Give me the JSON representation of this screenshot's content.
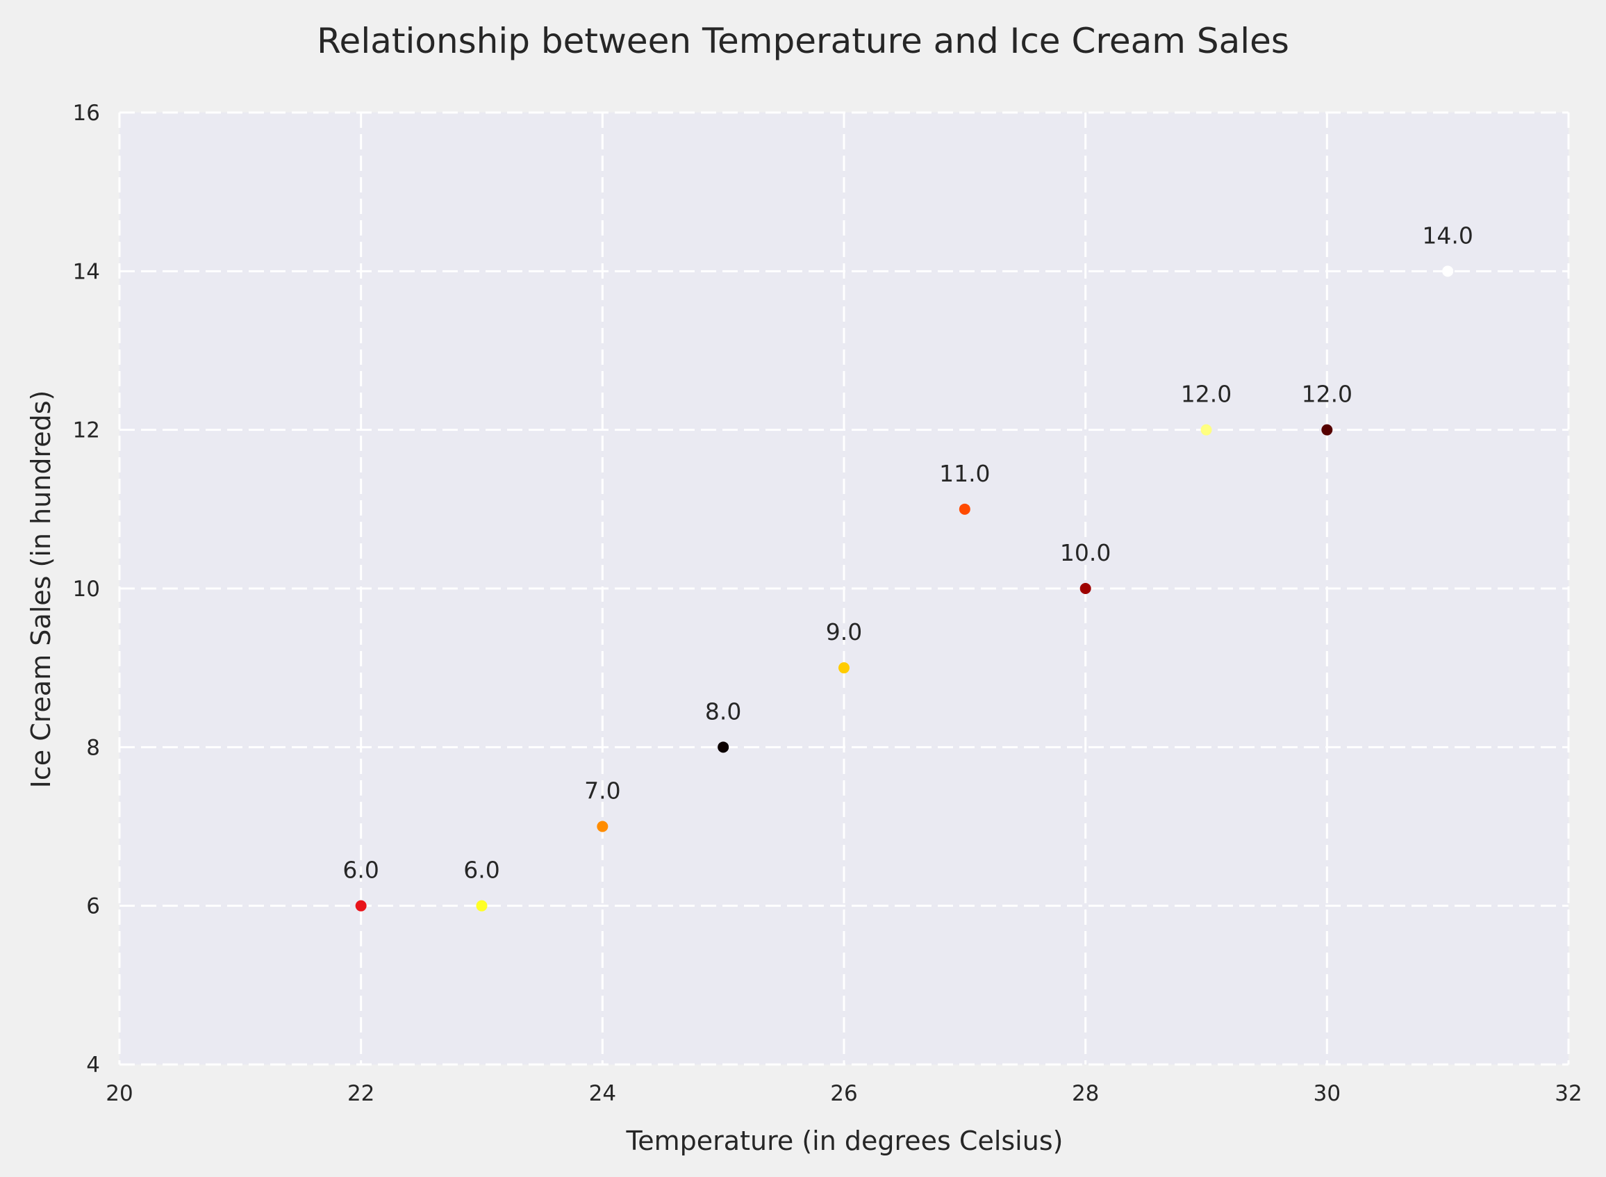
{
  "chart_data": {
    "type": "scatter",
    "title": "Relationship between Temperature and Ice Cream Sales",
    "xlabel": "Temperature (in degrees Celsius)",
    "ylabel": "Ice Cream Sales (in hundreds)",
    "xlim": [
      20,
      32
    ],
    "ylim": [
      4,
      16
    ],
    "xticks": [
      20,
      22,
      24,
      26,
      28,
      30,
      32
    ],
    "yticks": [
      4,
      6,
      8,
      10,
      12,
      14,
      16
    ],
    "grid": true,
    "points": [
      {
        "x": 22,
        "y": 6,
        "label": "6.0",
        "color": "#e8131a"
      },
      {
        "x": 23,
        "y": 6,
        "label": "6.0",
        "color": "#ffff26"
      },
      {
        "x": 24,
        "y": 7,
        "label": "7.0",
        "color": "#ff8c00"
      },
      {
        "x": 25,
        "y": 8,
        "label": "8.0",
        "color": "#0b0000"
      },
      {
        "x": 26,
        "y": 9,
        "label": "9.0",
        "color": "#ffcc00"
      },
      {
        "x": 27,
        "y": 11,
        "label": "11.0",
        "color": "#ff4a00"
      },
      {
        "x": 28,
        "y": 10,
        "label": "10.0",
        "color": "#9e0000"
      },
      {
        "x": 29,
        "y": 12,
        "label": "12.0",
        "color": "#ffff80"
      },
      {
        "x": 30,
        "y": 12,
        "label": "12.0",
        "color": "#550000"
      },
      {
        "x": 31,
        "y": 14,
        "label": "14.0",
        "color": "#ffffff"
      }
    ],
    "colors": {
      "plot_background": "#eaeaf2",
      "figure_background": "#f0f0f0",
      "grid": "#ffffff",
      "text": "#262626"
    }
  }
}
